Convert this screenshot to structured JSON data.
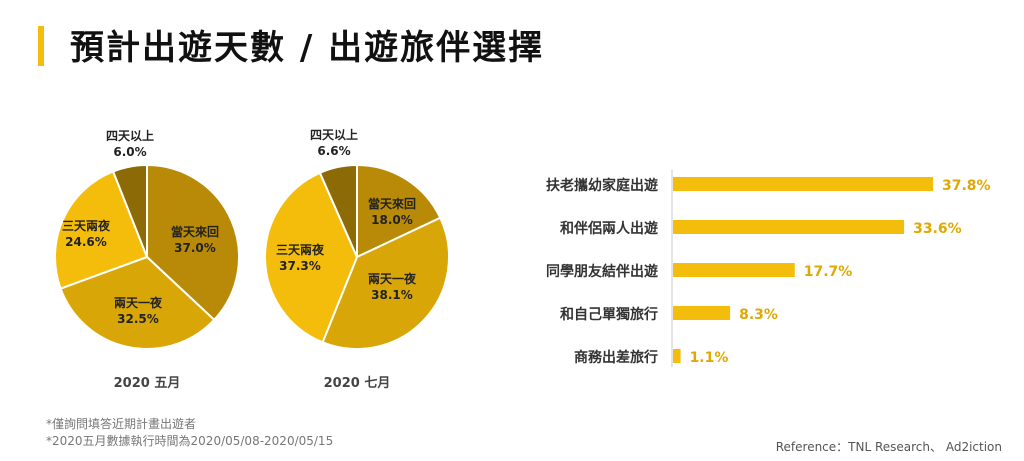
{
  "title": "預計出遊天數 / 出遊旅伴選擇",
  "colors": {
    "accent": "#f5bd0b",
    "bar": "#f5bd0b",
    "bar_label": "#e0a800",
    "slice_dark": "#8c6a06",
    "slice_ochre": "#b88a07",
    "slice_gold": "#d9a608",
    "slice_yellow": "#f5bd0b"
  },
  "chart_data": [
    {
      "type": "pie",
      "title": "2020 五月",
      "slices": [
        {
          "label": "當天來回",
          "value": 37.0,
          "display": "37.0%",
          "color": "#b88a07"
        },
        {
          "label": "兩天一夜",
          "value": 32.5,
          "display": "32.5%",
          "color": "#d9a608"
        },
        {
          "label": "三天兩夜",
          "value": 24.6,
          "display": "24.6%",
          "color": "#f5bd0b"
        },
        {
          "label": "四天以上",
          "value": 6.0,
          "display": "6.0%",
          "color": "#8c6a06"
        }
      ]
    },
    {
      "type": "pie",
      "title": "2020 七月",
      "slices": [
        {
          "label": "當天來回",
          "value": 18.0,
          "display": "18.0%",
          "color": "#b88a07"
        },
        {
          "label": "兩天一夜",
          "value": 38.1,
          "display": "38.1%",
          "color": "#d9a608"
        },
        {
          "label": "三天兩夜",
          "value": 37.3,
          "display": "37.3%",
          "color": "#f5bd0b"
        },
        {
          "label": "四天以上",
          "value": 6.6,
          "display": "6.6%",
          "color": "#8c6a06"
        }
      ]
    },
    {
      "type": "bar",
      "orientation": "horizontal",
      "categories": [
        "扶老攜幼家庭出遊",
        "和伴侶兩人出遊",
        "同學朋友結伴出遊",
        "和自己單獨旅行",
        "商務出差旅行"
      ],
      "values": [
        37.8,
        33.6,
        17.7,
        8.3,
        1.1
      ],
      "value_labels": [
        "37.8%",
        "33.6%",
        "17.7%",
        "8.3%",
        "1.1%"
      ],
      "xlim": [
        0,
        40
      ]
    }
  ],
  "notes": [
    "*僅詢問填答近期計畫出遊者",
    "*2020五月數據執行時間為2020/05/08-2020/05/15"
  ],
  "reference": "Reference：TNL Research、 Ad2iction"
}
